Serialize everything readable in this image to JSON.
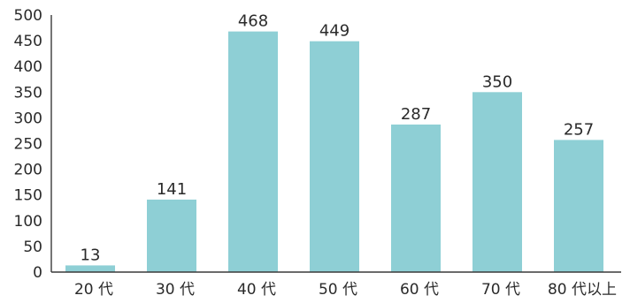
{
  "chart_data": {
    "type": "bar",
    "title": "",
    "xlabel": "",
    "ylabel": "",
    "categories": [
      "20 代",
      "30 代",
      "40 代",
      "50 代",
      "60 代",
      "70 代",
      "80 代以上"
    ],
    "values": [
      13,
      141,
      468,
      449,
      287,
      350,
      257
    ],
    "ylim": [
      0,
      500
    ],
    "yticks": [
      0,
      50,
      100,
      150,
      200,
      250,
      300,
      350,
      400,
      450,
      500
    ],
    "grid": false,
    "legend": "none",
    "bar_color": "#8ecfd5"
  }
}
